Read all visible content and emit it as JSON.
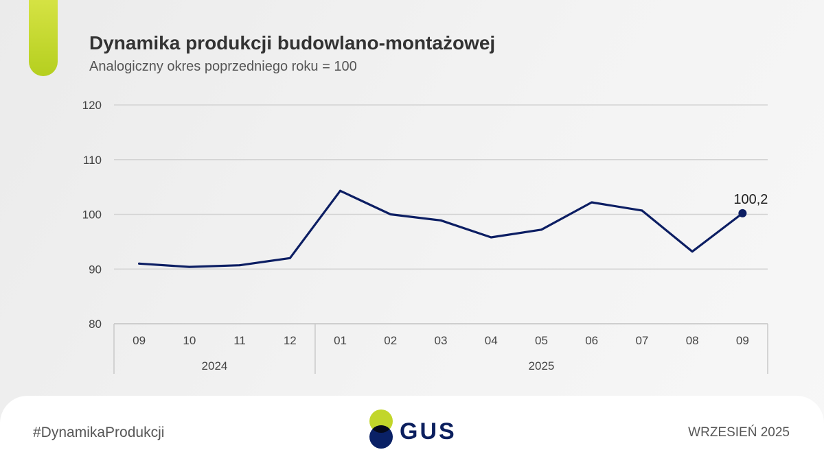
{
  "chart_data": {
    "type": "line",
    "title": "Dynamika produkcji budowlano-montażowej",
    "subtitle": "Analogiczny okres poprzedniego roku = 100",
    "xlabel": "",
    "ylabel": "",
    "categories": [
      "09",
      "10",
      "11",
      "12",
      "01",
      "02",
      "03",
      "04",
      "05",
      "06",
      "07",
      "08",
      "09"
    ],
    "category_groups": [
      {
        "label": "2024",
        "from": 0,
        "to": 3
      },
      {
        "label": "2025",
        "from": 4,
        "to": 12
      }
    ],
    "values": [
      91.0,
      90.4,
      90.7,
      92.0,
      104.3,
      100.0,
      98.9,
      95.8,
      97.2,
      102.2,
      100.7,
      93.2,
      100.2
    ],
    "ylim": [
      80,
      120
    ],
    "yticks": [
      80,
      90,
      100,
      110,
      120
    ],
    "grid": true,
    "data_labels": [
      {
        "index": 12,
        "text": "100,2"
      }
    ]
  },
  "footer": {
    "hashtag": "#DynamikaProdukcji",
    "logo_text": "GUS",
    "date": "WRZESIEŃ 2025"
  },
  "colors": {
    "line": "#0c1e63",
    "accent": "#c2d62a",
    "navy": "#0a2166",
    "overlap": "#050a1c",
    "logo_text": "#0b1f5e"
  }
}
